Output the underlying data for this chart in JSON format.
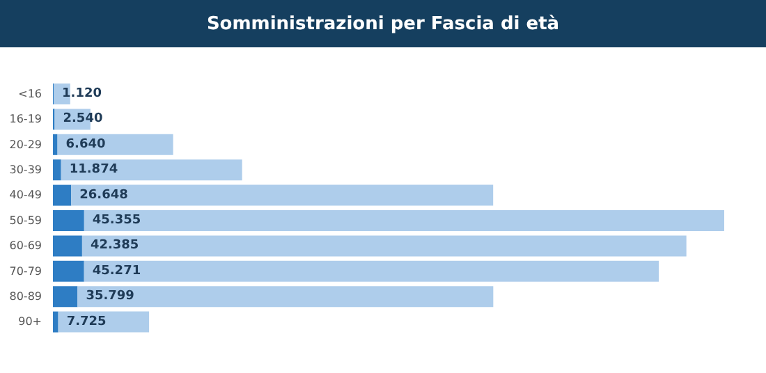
{
  "chart_data": {
    "type": "bar",
    "orientation": "horizontal",
    "title": "Somministrazioni per Fascia di età",
    "categories": [
      "<16",
      "16-19",
      "20-29",
      "30-39",
      "40-49",
      "50-59",
      "60-69",
      "70-79",
      "80-89",
      "90+"
    ],
    "series": [
      {
        "color": "#2e7dc4",
        "values": [
          1120,
          2540,
          6640,
          11874,
          26648,
          45355,
          42385,
          45271,
          35799,
          7725
        ],
        "value_labels": [
          "1.120",
          "2.540",
          "6.640",
          "11.874",
          "26.648",
          "45.355",
          "42.385",
          "45.271",
          "35.799",
          "7.725"
        ]
      },
      {
        "color": "#aecdeb",
        "values": [
          24000,
          52000,
          168000,
          263000,
          613000,
          930000,
          878000,
          835000,
          604000,
          132000
        ]
      }
    ],
    "stacked": true,
    "tick_labels": "y",
    "grid": false,
    "legend": false
  }
}
